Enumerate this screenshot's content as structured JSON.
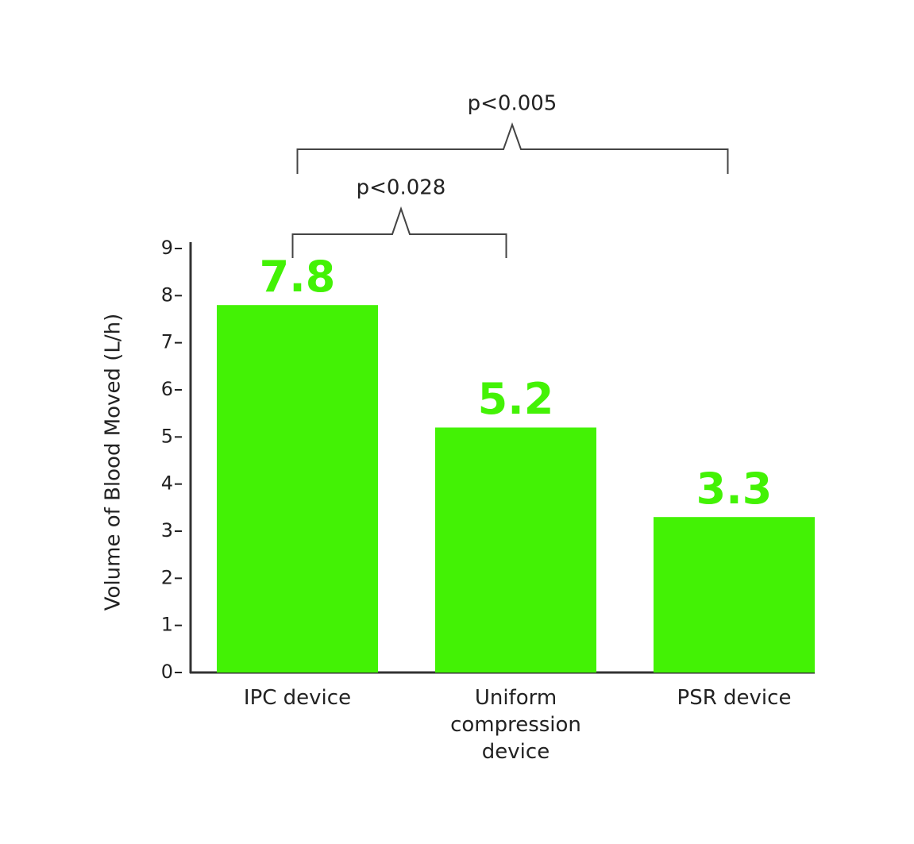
{
  "chart_data": {
    "type": "bar",
    "y_label": "Volume of Blood Moved (L/h)",
    "categories": [
      "IPC device",
      "Uniform compression device",
      "PSR device"
    ],
    "values": [
      7.8,
      5.2,
      3.3
    ],
    "color": "#43f205",
    "ylim": [
      0,
      9
    ],
    "yticks": [
      0,
      1,
      2,
      3,
      4,
      5,
      6,
      7,
      8,
      9
    ],
    "annotations": [
      "p<0.028",
      "p<0.005"
    ]
  }
}
